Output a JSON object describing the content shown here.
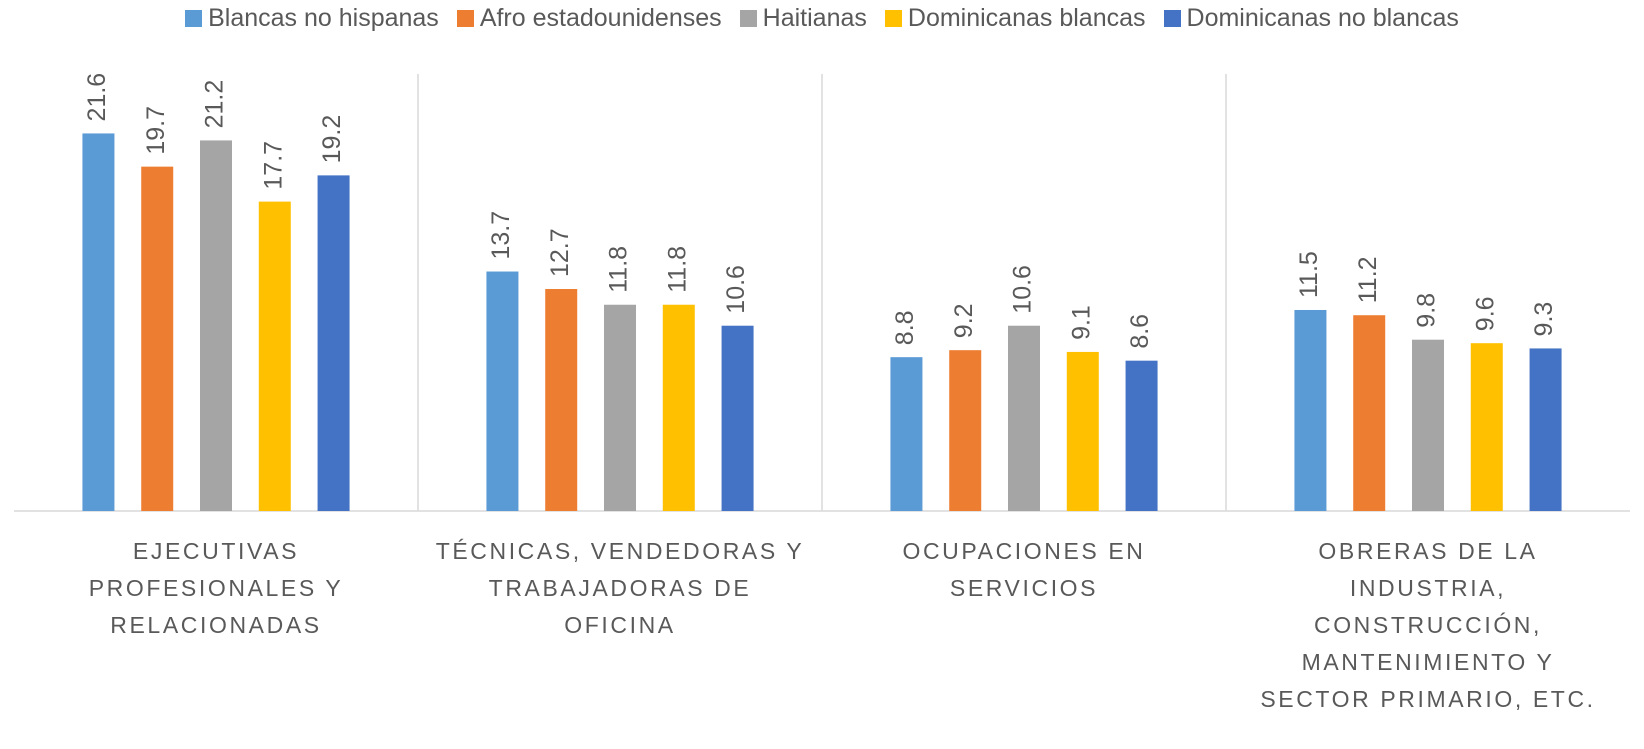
{
  "chart_data": {
    "type": "bar",
    "categories": [
      "EJECUTIVAS PROFESIONALES Y RELACIONADAS",
      "TÉCNICAS, VENDEDORAS Y TRABAJADORAS DE OFICINA",
      "OCUPACIONES EN SERVICIOS",
      "OBRERAS DE LA INDUSTRIA, CONSTRUCCIÓN, MANTENIMIENTO Y SECTOR PRIMARIO, ETC."
    ],
    "series": [
      {
        "name": "Blancas no hispanas",
        "color": "#5b9bd5",
        "values": [
          21.6,
          13.7,
          8.8,
          11.5
        ]
      },
      {
        "name": "Afro estadounidenses",
        "color": "#ed7d31",
        "values": [
          19.7,
          12.7,
          9.2,
          11.2
        ]
      },
      {
        "name": "Haitianas",
        "color": "#a5a5a5",
        "values": [
          21.2,
          11.8,
          10.6,
          9.8
        ]
      },
      {
        "name": "Dominicanas blancas",
        "color": "#ffc000",
        "values": [
          17.7,
          11.8,
          9.1,
          9.6
        ]
      },
      {
        "name": "Dominicanas no blancas",
        "color": "#4472c4",
        "values": [
          19.2,
          10.6,
          8.6,
          9.3
        ]
      }
    ],
    "ylim": [
      0,
      25
    ],
    "legend": "top"
  }
}
